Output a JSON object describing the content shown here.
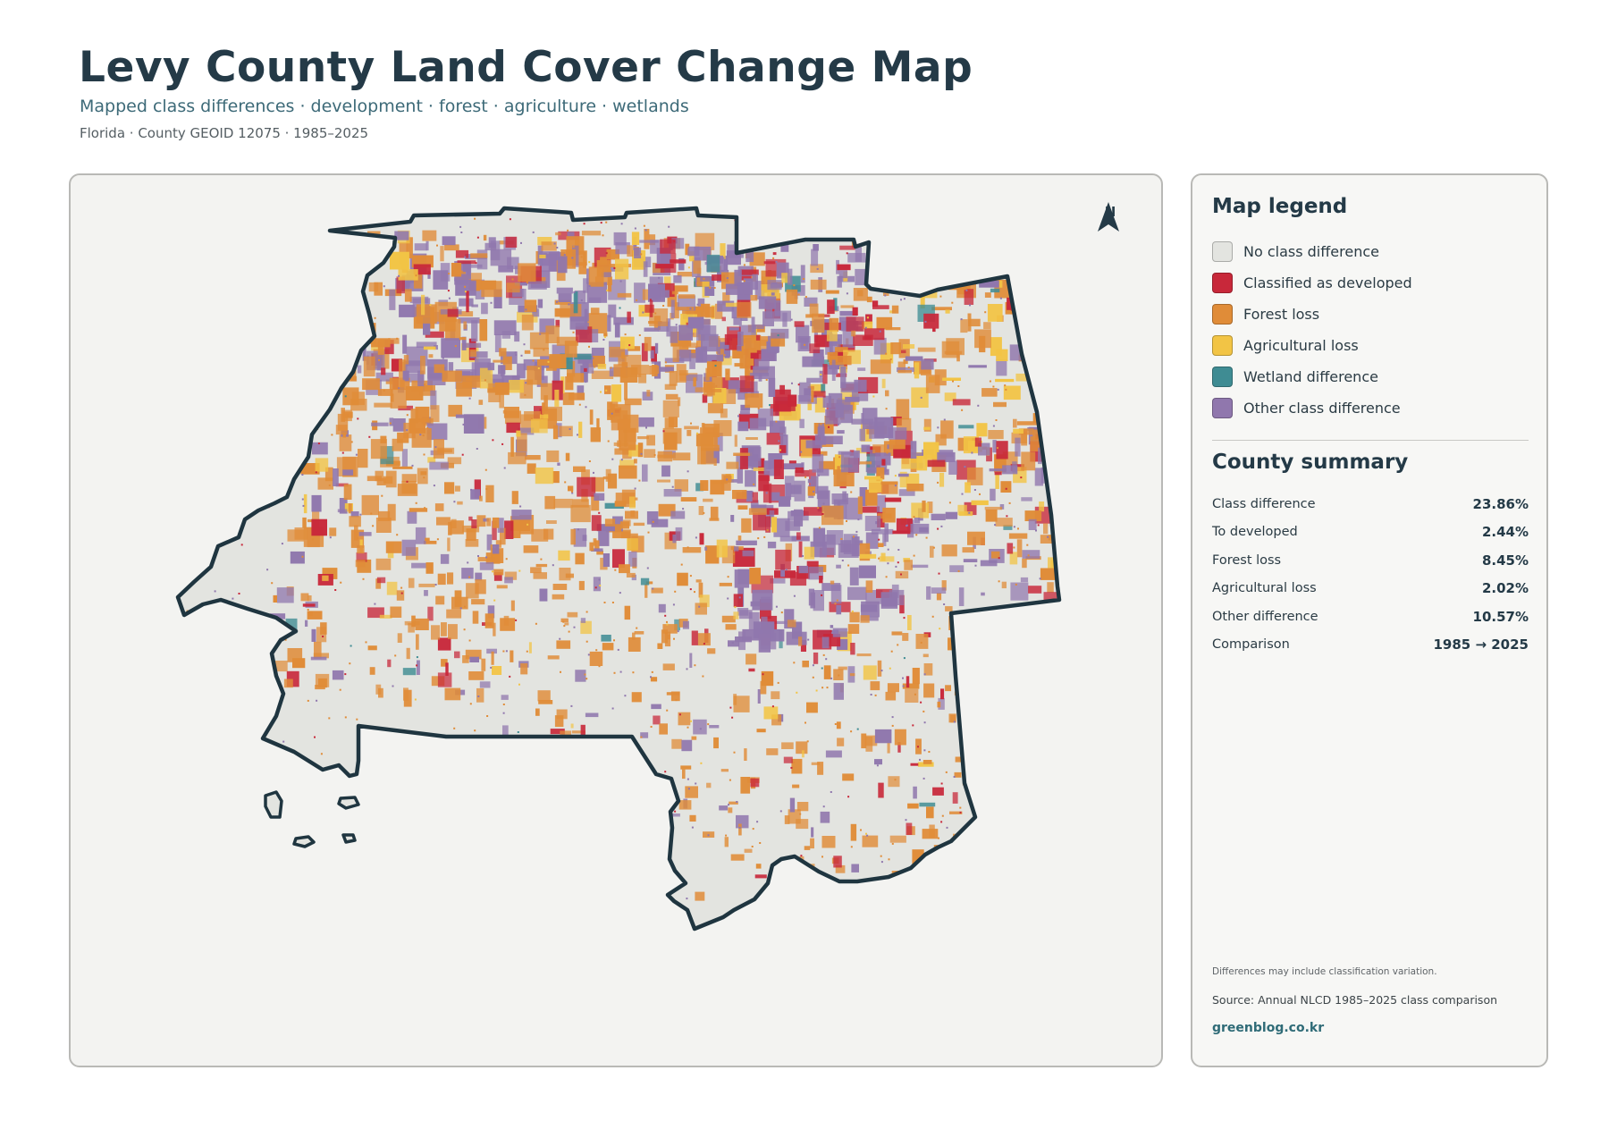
{
  "header": {
    "title": "Levy County Land Cover Change Map",
    "subtitle": "Mapped class differences · development · forest · agriculture · wetlands",
    "meta": "Florida · County GEOID 12075 · 1985–2025"
  },
  "map": {
    "north_label": "N",
    "colors": {
      "no_change": "#e3e4e0",
      "developed": "#c8283a",
      "forest_loss": "#e08c38",
      "agricultural_loss": "#f2c445",
      "wetland": "#3f8c93",
      "other": "#9077ad",
      "outline": "#1f3540"
    }
  },
  "legend": {
    "title": "Map legend",
    "items": [
      {
        "label": "No class difference",
        "color": "#e3e4e0"
      },
      {
        "label": "Classified as developed",
        "color": "#c8283a"
      },
      {
        "label": "Forest loss",
        "color": "#e08c38"
      },
      {
        "label": "Agricultural loss",
        "color": "#f2c445"
      },
      {
        "label": "Wetland difference",
        "color": "#3f8c93"
      },
      {
        "label": "Other class difference",
        "color": "#9077ad"
      }
    ]
  },
  "summary": {
    "title": "County summary",
    "rows": [
      {
        "label": "Class difference",
        "value": "23.86%"
      },
      {
        "label": "To developed",
        "value": "2.44%"
      },
      {
        "label": "Forest loss",
        "value": "8.45%"
      },
      {
        "label": "Agricultural loss",
        "value": "2.02%"
      },
      {
        "label": "Other difference",
        "value": "10.57%"
      },
      {
        "label": "Comparison",
        "value": "1985 → 2025"
      }
    ]
  },
  "footer": {
    "note": "Differences may include classification variation.",
    "source": "Source: Annual NLCD 1985–2025 class comparison",
    "site": "greenblog.co.kr"
  }
}
